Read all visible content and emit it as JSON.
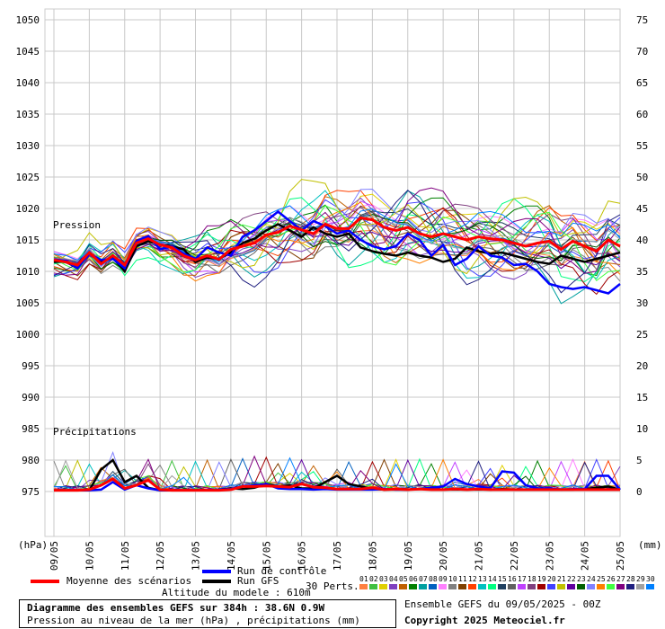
{
  "chart_data": {
    "type": "line",
    "title": "Diagramme des ensembles GEFS sur 384h : 38.6N 0.9W",
    "subtitle": "Pression au niveau de la mer (hPa) , précipitations (mm)",
    "y_left_label": "(hPa)",
    "y_right_label": "(mm)",
    "y_left_range": [
      975,
      1050
    ],
    "y_right_range": [
      0,
      75
    ],
    "y_left_ticks": [
      "1050",
      "1045",
      "1040",
      "1035",
      "1030",
      "1025",
      "1020",
      "1015",
      "1010",
      "1005",
      "1000",
      "995",
      "990",
      "985",
      "980",
      "975"
    ],
    "y_right_ticks": [
      "75",
      "70",
      "65",
      "60",
      "55",
      "50",
      "45",
      "40",
      "35",
      "30",
      "25",
      "20",
      "15",
      "10",
      "5",
      "0"
    ],
    "x_ticks": [
      "09/05",
      "10/05",
      "11/05",
      "12/05",
      "13/05",
      "14/05",
      "15/05",
      "16/05",
      "17/05",
      "18/05",
      "19/05",
      "20/05",
      "21/05",
      "22/05",
      "23/05",
      "24/05",
      "25/05"
    ],
    "panel_labels": {
      "pressure": "Pression",
      "precip": "Précipitations"
    },
    "legend": {
      "mean": "Moyenne des scénarios",
      "control": "Run de contrôle",
      "gfs": "Run GFS",
      "perts": "30 Perts."
    },
    "altitude": "Altitude du modele : 610m",
    "run_info": "Ensemble GEFS du 09/05/2025 - 00Z",
    "copyright": "Copyright 2025 Meteociel.fr",
    "series": [
      {
        "name": "Moyenne des scénarios",
        "color": "#ff0000",
        "pressure": [
          1011.8,
          1011.5,
          1011.0,
          1013.0,
          1011.2,
          1012.5,
          1011.0,
          1014.5,
          1015.2,
          1014.2,
          1013.8,
          1012.5,
          1011.8,
          1012.5,
          1011.9,
          1013.5,
          1014.0,
          1014.5,
          1015.8,
          1016.2,
          1017.2,
          1016.6,
          1016.0,
          1017.5,
          1016.8,
          1016.8,
          1018.5,
          1018.2,
          1017.0,
          1016.5,
          1017.0,
          1016.0,
          1015.5,
          1016.0,
          1015.5,
          1015.0,
          1015.5,
          1015.2,
          1015.0,
          1014.5,
          1014.0,
          1014.5,
          1014.8,
          1013.5,
          1014.8,
          1014.0,
          1013.2,
          1015.0,
          1014.0
        ],
        "precip": [
          0.2,
          0.2,
          0.2,
          0.3,
          1.0,
          2.0,
          0.5,
          1.0,
          1.8,
          0.3,
          0.2,
          0.2,
          0.2,
          0.2,
          0.2,
          0.3,
          0.8,
          0.8,
          0.9,
          0.8,
          0.7,
          1.2,
          0.7,
          0.6,
          0.4,
          0.4,
          0.4,
          0.6,
          0.3,
          0.4,
          0.3,
          0.4,
          0.3,
          0.3,
          0.4,
          0.3,
          0.4,
          0.3,
          0.3,
          0.3,
          0.3,
          0.3,
          0.3,
          0.3,
          0.3,
          0.3,
          0.3,
          0.3,
          0.3
        ]
      },
      {
        "name": "Run de contrôle",
        "color": "#0000ff",
        "pressure": [
          1011.9,
          1011.7,
          1010.5,
          1012.8,
          1011.8,
          1012.0,
          1010.5,
          1014.8,
          1015.6,
          1013.5,
          1014.0,
          1012.8,
          1012.0,
          1013.8,
          1013.0,
          1012.5,
          1015.5,
          1016.5,
          1018.0,
          1019.5,
          1018.0,
          1016.5,
          1018.0,
          1017.2,
          1016.0,
          1016.5,
          1015.0,
          1014.0,
          1013.5,
          1014.0,
          1016.0,
          1015.0,
          1012.5,
          1014.2,
          1011.0,
          1012.0,
          1014.0,
          1012.5,
          1012.2,
          1011.0,
          1011.2,
          1010.0,
          1008.0,
          1007.5,
          1007.2,
          1007.5,
          1007.0,
          1006.5,
          1008.0
        ],
        "precip": [
          0.2,
          0.2,
          0.2,
          0.2,
          0.3,
          1.5,
          0.3,
          1.0,
          0.5,
          0.2,
          0.2,
          0.2,
          0.2,
          0.2,
          0.3,
          0.4,
          0.8,
          1.0,
          1.2,
          0.5,
          0.4,
          0.4,
          0.3,
          0.4,
          0.3,
          0.3,
          0.3,
          0.3,
          0.4,
          0.3,
          0.3,
          0.4,
          0.6,
          0.8,
          2.0,
          1.2,
          0.8,
          0.5,
          3.2,
          3.0,
          1.0,
          0.5,
          0.5,
          0.3,
          0.4,
          0.4,
          2.5,
          2.5,
          0.3
        ]
      },
      {
        "name": "Run GFS",
        "color": "#000000",
        "pressure": [
          1011.5,
          1011.6,
          1010.5,
          1013.0,
          1011.5,
          1012.2,
          1010.0,
          1014.0,
          1014.8,
          1014.2,
          1014.0,
          1013.5,
          1011.5,
          1012.2,
          1012.0,
          1013.0,
          1014.5,
          1015.2,
          1016.5,
          1017.5,
          1016.5,
          1015.5,
          1017.0,
          1016.0,
          1015.5,
          1016.0,
          1013.8,
          1013.2,
          1012.8,
          1012.5,
          1013.0,
          1012.5,
          1012.2,
          1011.5,
          1012.0,
          1013.8,
          1013.2,
          1012.8,
          1013.0,
          1012.5,
          1012.0,
          1011.5,
          1011.2,
          1012.5,
          1012.0,
          1011.5,
          1012.0,
          1012.5,
          1013.0
        ],
        "precip": [
          0.2,
          0.2,
          0.2,
          0.2,
          3.5,
          5.0,
          1.5,
          2.5,
          0.6,
          0.2,
          0.2,
          0.2,
          0.2,
          0.2,
          0.3,
          0.5,
          0.4,
          0.6,
          1.2,
          0.8,
          1.0,
          0.5,
          0.5,
          1.5,
          2.5,
          1.2,
          0.8,
          0.4,
          0.3,
          0.3,
          0.3,
          0.4,
          0.4,
          0.3,
          0.3,
          0.3,
          0.3,
          0.3,
          0.4,
          0.3,
          0.3,
          0.3,
          0.3,
          0.3,
          0.3,
          0.4,
          0.6,
          0.8,
          0.3
        ]
      }
    ]
  },
  "pert_colors": [
    "#ff8040",
    "#40c040",
    "#e0d000",
    "#8040c0",
    "#c06000",
    "#008000",
    "#00a0a0",
    "#0060c0",
    "#ff80ff",
    "#808080",
    "#804000",
    "#ff4000",
    "#00c0c0",
    "#00ff80",
    "#204060",
    "#606060",
    "#c040ff",
    "#804080",
    "#a00000",
    "#4040ff",
    "#c0c000",
    "#6000a0",
    "#006000",
    "#8080ff",
    "#ff8000",
    "#40ff40",
    "#800080",
    "#202080",
    "#a0a0a0",
    "#0080ff"
  ],
  "pert_labels": [
    "01",
    "02",
    "03",
    "04",
    "05",
    "06",
    "07",
    "08",
    "09",
    "10",
    "11",
    "12",
    "13",
    "14",
    "15",
    "16",
    "17",
    "18",
    "19",
    "20",
    "21",
    "22",
    "23",
    "24",
    "25",
    "26",
    "27",
    "28",
    "29",
    "30"
  ]
}
